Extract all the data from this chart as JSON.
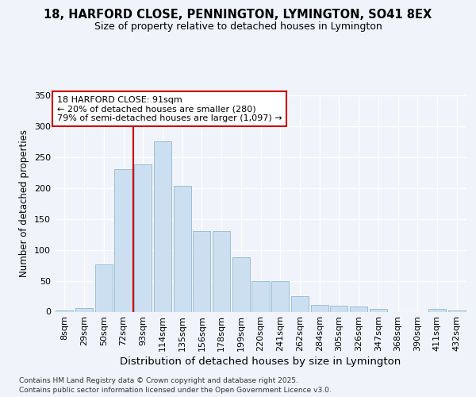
{
  "title1": "18, HARFORD CLOSE, PENNINGTON, LYMINGTON, SO41 8EX",
  "title2": "Size of property relative to detached houses in Lymington",
  "xlabel": "Distribution of detached houses by size in Lymington",
  "ylabel": "Number of detached properties",
  "categories": [
    "8sqm",
    "29sqm",
    "50sqm",
    "72sqm",
    "93sqm",
    "114sqm",
    "135sqm",
    "156sqm",
    "178sqm",
    "199sqm",
    "220sqm",
    "241sqm",
    "262sqm",
    "284sqm",
    "305sqm",
    "326sqm",
    "347sqm",
    "368sqm",
    "390sqm",
    "411sqm",
    "432sqm"
  ],
  "values": [
    2,
    6,
    77,
    230,
    238,
    275,
    203,
    130,
    130,
    88,
    50,
    49,
    25,
    11,
    10,
    8,
    4,
    0,
    0,
    4,
    2
  ],
  "bar_color": "#ccdff0",
  "bar_edge_color": "#9bbfd8",
  "vline_color": "#cc0000",
  "vline_x_idx": 4,
  "annotation_title": "18 HARFORD CLOSE: 91sqm",
  "annotation_line1": "← 20% of detached houses are smaller (280)",
  "annotation_line2": "79% of semi-detached houses are larger (1,097) →",
  "ylim_max": 350,
  "yticks": [
    0,
    50,
    100,
    150,
    200,
    250,
    300,
    350
  ],
  "footer1": "Contains HM Land Registry data © Crown copyright and database right 2025.",
  "footer2": "Contains public sector information licensed under the Open Government Licence v3.0.",
  "bg_color": "#f0f4fa",
  "title1_fontsize": 10.5,
  "title2_fontsize": 9.0,
  "xlabel_fontsize": 9.5,
  "ylabel_fontsize": 8.5,
  "tick_fontsize": 8.0,
  "annot_fontsize": 8.0,
  "footer_fontsize": 6.5
}
